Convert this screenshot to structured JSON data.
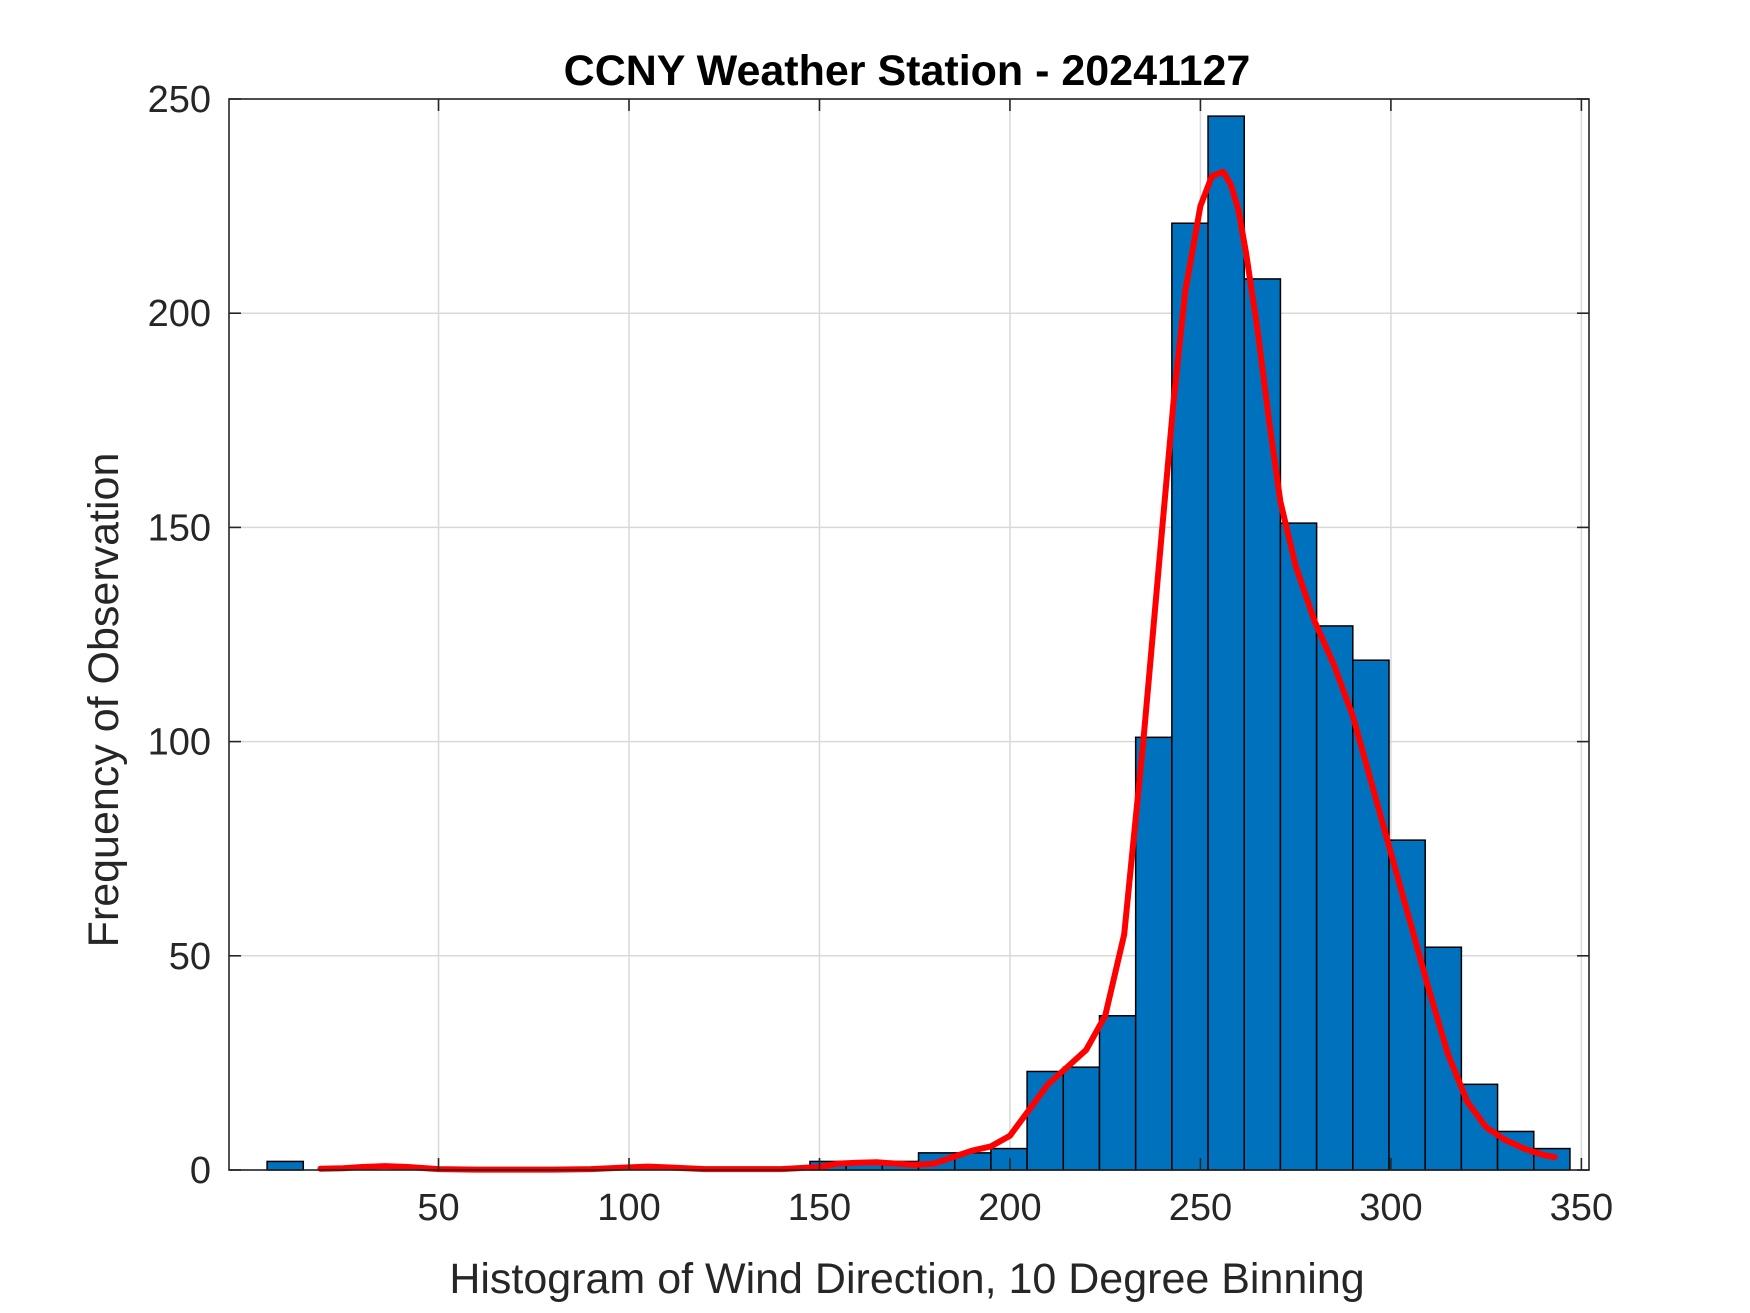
{
  "chart_data": {
    "type": "bar",
    "title": "CCNY Weather Station - 20241127",
    "xlabel": "Histogram of Wind Direction, 10 Degree Binning",
    "ylabel": "Frequency of Observation",
    "xlim": [
      -5,
      352
    ],
    "ylim": [
      0,
      250
    ],
    "grid": true,
    "x_ticks": [
      50,
      100,
      150,
      200,
      250,
      300,
      350
    ],
    "y_ticks": [
      0,
      50,
      100,
      150,
      200,
      250
    ],
    "bin_width": 9.5,
    "bins": [
      {
        "start": 5,
        "value": 2
      },
      {
        "start": 14.5,
        "value": 0
      },
      {
        "start": 24,
        "value": 0
      },
      {
        "start": 33.5,
        "value": 0
      },
      {
        "start": 43,
        "value": 0
      },
      {
        "start": 52.5,
        "value": 0
      },
      {
        "start": 62,
        "value": 0
      },
      {
        "start": 71.5,
        "value": 0
      },
      {
        "start": 81,
        "value": 0
      },
      {
        "start": 90.5,
        "value": 0
      },
      {
        "start": 100,
        "value": 0
      },
      {
        "start": 109.5,
        "value": 0
      },
      {
        "start": 119,
        "value": 0
      },
      {
        "start": 128.5,
        "value": 0
      },
      {
        "start": 138,
        "value": 0
      },
      {
        "start": 147.5,
        "value": 2
      },
      {
        "start": 157,
        "value": 2
      },
      {
        "start": 166.5,
        "value": 2
      },
      {
        "start": 176,
        "value": 4
      },
      {
        "start": 185.5,
        "value": 4
      },
      {
        "start": 195,
        "value": 5
      },
      {
        "start": 204.5,
        "value": 23
      },
      {
        "start": 214,
        "value": 24
      },
      {
        "start": 223.5,
        "value": 36
      },
      {
        "start": 233,
        "value": 101
      },
      {
        "start": 242.5,
        "value": 221
      },
      {
        "start": 252,
        "value": 246
      },
      {
        "start": 261.5,
        "value": 208
      },
      {
        "start": 271,
        "value": 151
      },
      {
        "start": 280.5,
        "value": 127
      },
      {
        "start": 290,
        "value": 119
      },
      {
        "start": 299.5,
        "value": 77
      },
      {
        "start": 309,
        "value": 52
      },
      {
        "start": 318.5,
        "value": 20
      },
      {
        "start": 328,
        "value": 9
      },
      {
        "start": 337.5,
        "value": 5
      }
    ],
    "fit_line": {
      "x": [
        19,
        25,
        30,
        36,
        42,
        50,
        60,
        70,
        80,
        90,
        100,
        105,
        110,
        120,
        130,
        140,
        150,
        155,
        160,
        165,
        170,
        175,
        180,
        185,
        190,
        195,
        200,
        205,
        210,
        215,
        220,
        225,
        230,
        235,
        240,
        243,
        246,
        250,
        253,
        256,
        258,
        260,
        262,
        265,
        268,
        271,
        275,
        280,
        285,
        290,
        295,
        300,
        305,
        310,
        315,
        320,
        325,
        330,
        335,
        340,
        343
      ],
      "y": [
        0.3,
        0.4,
        0.7,
        0.9,
        0.7,
        0.2,
        0.1,
        0.1,
        0.1,
        0.2,
        0.6,
        0.8,
        0.6,
        0.2,
        0.2,
        0.2,
        0.7,
        1.5,
        1.7,
        1.8,
        1.5,
        1.2,
        1.5,
        3,
        4.5,
        5.5,
        8,
        14,
        20,
        24,
        28,
        36,
        55,
        100,
        150,
        180,
        205,
        225,
        232,
        233,
        230,
        224,
        214,
        196,
        175,
        156,
        141,
        128,
        118,
        106,
        90,
        74,
        58,
        42,
        27,
        16,
        10,
        7,
        5,
        3.5,
        3
      ]
    },
    "colors": {
      "bar_fill": "#0072bd",
      "bar_edge": "#000000",
      "fit_line": "#ff0000"
    }
  }
}
